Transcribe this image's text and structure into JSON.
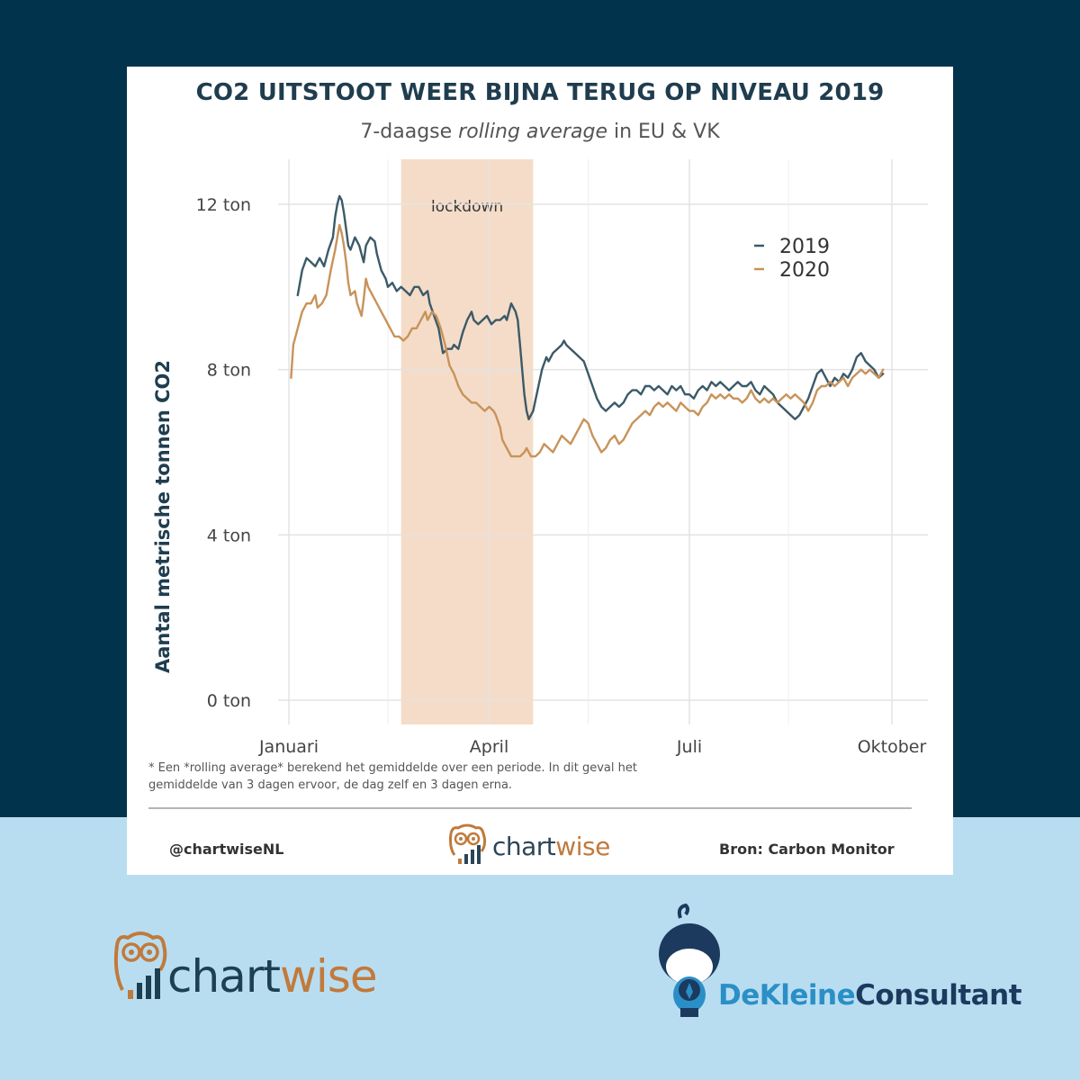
{
  "header": {
    "title": "CO2 UITSTOOT WEER BIJNA TERUG OP NIVEAU 2019",
    "subtitle_pre": "7-daagse ",
    "subtitle_em": "rolling average",
    "subtitle_post": " in EU & VK"
  },
  "footer": {
    "footnote_line1": "* Een *rolling average* berekend het gemiddelde over een periode. In dit geval het",
    "footnote_line2": "gemiddelde van 3 dagen ervoor, de dag zelf en 3 dagen erna.",
    "handle": "@chartwiseNL",
    "source": "Bron: Carbon Monitor"
  },
  "logos": {
    "chartwise_part1": "chart",
    "chartwise_part2": "wise",
    "consultant_part1": "DeKleine",
    "consultant_part2": "Consultant"
  },
  "colors": {
    "background_top": "#02334d",
    "background_bottom": "#b9ddf0",
    "series_2019": "#3c5a68",
    "series_2020": "#c8935a",
    "lockdown_band": "#f4dcc8",
    "accent_orange": "#c07a3c"
  },
  "chart_data": {
    "type": "line",
    "title": "CO2 UITSTOOT WEER BIJNA TERUG OP NIVEAU 2019",
    "subtitle": "7-daagse rolling average in EU & VK",
    "xlabel": "",
    "ylabel": "Aantal metrische tonnen CO2",
    "x_unit": "day of year",
    "xlim": [
      1,
      275
    ],
    "ylim": [
      0,
      12
    ],
    "x_ticks": [
      {
        "day": 1,
        "label": "Januari"
      },
      {
        "day": 92,
        "label": "April"
      },
      {
        "day": 183,
        "label": "Juli"
      },
      {
        "day": 275,
        "label": "Oktober"
      }
    ],
    "y_ticks": [
      {
        "value": 0,
        "label": "0 ton"
      },
      {
        "value": 4,
        "label": "4 ton"
      },
      {
        "value": 8,
        "label": "8 ton"
      },
      {
        "value": 12,
        "label": "12 ton"
      }
    ],
    "minor_x_gridlines": [
      46,
      137,
      228
    ],
    "annotations": [
      {
        "type": "band",
        "label": "lockdown",
        "from_day": 52,
        "to_day": 112
      }
    ],
    "legend_position": "top-right",
    "grid": true,
    "series": [
      {
        "name": "2019",
        "points": [
          [
            5,
            9.8
          ],
          [
            7,
            10.4
          ],
          [
            9,
            10.7
          ],
          [
            11,
            10.6
          ],
          [
            13,
            10.5
          ],
          [
            15,
            10.7
          ],
          [
            17,
            10.5
          ],
          [
            19,
            10.9
          ],
          [
            21,
            11.2
          ],
          [
            22,
            11.7
          ],
          [
            23,
            12.0
          ],
          [
            24,
            12.2
          ],
          [
            25,
            12.1
          ],
          [
            26,
            11.8
          ],
          [
            27,
            11.4
          ],
          [
            28,
            11.0
          ],
          [
            29,
            10.9
          ],
          [
            31,
            11.2
          ],
          [
            33,
            11.0
          ],
          [
            35,
            10.6
          ],
          [
            36,
            11.0
          ],
          [
            38,
            11.2
          ],
          [
            40,
            11.1
          ],
          [
            41,
            10.8
          ],
          [
            43,
            10.4
          ],
          [
            45,
            10.2
          ],
          [
            46,
            10.0
          ],
          [
            48,
            10.1
          ],
          [
            50,
            9.9
          ],
          [
            52,
            10.0
          ],
          [
            54,
            9.9
          ],
          [
            56,
            9.8
          ],
          [
            58,
            10.0
          ],
          [
            60,
            10.0
          ],
          [
            62,
            9.8
          ],
          [
            64,
            9.9
          ],
          [
            65,
            9.6
          ],
          [
            67,
            9.3
          ],
          [
            69,
            9.0
          ],
          [
            70,
            8.7
          ],
          [
            71,
            8.4
          ],
          [
            73,
            8.5
          ],
          [
            75,
            8.5
          ],
          [
            76,
            8.6
          ],
          [
            78,
            8.5
          ],
          [
            79,
            8.7
          ],
          [
            80,
            8.9
          ],
          [
            82,
            9.2
          ],
          [
            84,
            9.4
          ],
          [
            85,
            9.2
          ],
          [
            87,
            9.1
          ],
          [
            89,
            9.2
          ],
          [
            91,
            9.3
          ],
          [
            93,
            9.1
          ],
          [
            95,
            9.2
          ],
          [
            97,
            9.2
          ],
          [
            99,
            9.3
          ],
          [
            100,
            9.2
          ],
          [
            101,
            9.4
          ],
          [
            102,
            9.6
          ],
          [
            104,
            9.4
          ],
          [
            105,
            9.2
          ],
          [
            106,
            8.6
          ],
          [
            107,
            8.0
          ],
          [
            108,
            7.4
          ],
          [
            109,
            7.0
          ],
          [
            110,
            6.8
          ],
          [
            111,
            6.9
          ],
          [
            112,
            7.0
          ],
          [
            114,
            7.5
          ],
          [
            116,
            8.0
          ],
          [
            118,
            8.3
          ],
          [
            119,
            8.2
          ],
          [
            121,
            8.4
          ],
          [
            123,
            8.5
          ],
          [
            125,
            8.6
          ],
          [
            126,
            8.7
          ],
          [
            127,
            8.6
          ],
          [
            129,
            8.5
          ],
          [
            131,
            8.4
          ],
          [
            133,
            8.3
          ],
          [
            135,
            8.2
          ],
          [
            137,
            7.9
          ],
          [
            139,
            7.6
          ],
          [
            141,
            7.3
          ],
          [
            143,
            7.1
          ],
          [
            145,
            7.0
          ],
          [
            147,
            7.1
          ],
          [
            149,
            7.2
          ],
          [
            151,
            7.1
          ],
          [
            153,
            7.2
          ],
          [
            155,
            7.4
          ],
          [
            157,
            7.5
          ],
          [
            159,
            7.5
          ],
          [
            161,
            7.4
          ],
          [
            163,
            7.6
          ],
          [
            165,
            7.6
          ],
          [
            167,
            7.5
          ],
          [
            169,
            7.6
          ],
          [
            171,
            7.5
          ],
          [
            173,
            7.4
          ],
          [
            175,
            7.6
          ],
          [
            177,
            7.5
          ],
          [
            179,
            7.6
          ],
          [
            181,
            7.4
          ],
          [
            183,
            7.4
          ],
          [
            185,
            7.3
          ],
          [
            187,
            7.5
          ],
          [
            189,
            7.6
          ],
          [
            191,
            7.5
          ],
          [
            193,
            7.7
          ],
          [
            195,
            7.6
          ],
          [
            197,
            7.7
          ],
          [
            199,
            7.6
          ],
          [
            201,
            7.5
          ],
          [
            203,
            7.6
          ],
          [
            205,
            7.7
          ],
          [
            207,
            7.6
          ],
          [
            209,
            7.6
          ],
          [
            211,
            7.7
          ],
          [
            213,
            7.5
          ],
          [
            215,
            7.4
          ],
          [
            217,
            7.6
          ],
          [
            219,
            7.5
          ],
          [
            221,
            7.4
          ],
          [
            223,
            7.2
          ],
          [
            225,
            7.1
          ],
          [
            227,
            7.0
          ],
          [
            229,
            6.9
          ],
          [
            231,
            6.8
          ],
          [
            233,
            6.9
          ],
          [
            235,
            7.1
          ],
          [
            237,
            7.3
          ],
          [
            239,
            7.6
          ],
          [
            241,
            7.9
          ],
          [
            243,
            8.0
          ],
          [
            245,
            7.8
          ],
          [
            247,
            7.6
          ],
          [
            249,
            7.8
          ],
          [
            251,
            7.7
          ],
          [
            253,
            7.9
          ],
          [
            255,
            7.8
          ],
          [
            257,
            8.0
          ],
          [
            259,
            8.3
          ],
          [
            261,
            8.4
          ],
          [
            263,
            8.2
          ],
          [
            265,
            8.1
          ],
          [
            267,
            8.0
          ],
          [
            269,
            7.8
          ],
          [
            271,
            7.9
          ]
        ]
      },
      {
        "name": "2020",
        "points": [
          [
            2,
            7.8
          ],
          [
            3,
            8.6
          ],
          [
            5,
            9.0
          ],
          [
            7,
            9.4
          ],
          [
            9,
            9.6
          ],
          [
            11,
            9.6
          ],
          [
            13,
            9.8
          ],
          [
            14,
            9.5
          ],
          [
            16,
            9.6
          ],
          [
            18,
            9.8
          ],
          [
            20,
            10.4
          ],
          [
            22,
            10.9
          ],
          [
            23,
            11.2
          ],
          [
            24,
            11.5
          ],
          [
            25,
            11.3
          ],
          [
            26,
            11.0
          ],
          [
            27,
            10.6
          ],
          [
            28,
            10.1
          ],
          [
            29,
            9.8
          ],
          [
            31,
            9.9
          ],
          [
            32,
            9.6
          ],
          [
            34,
            9.3
          ],
          [
            35,
            9.7
          ],
          [
            36,
            10.2
          ],
          [
            37,
            10.0
          ],
          [
            39,
            9.8
          ],
          [
            41,
            9.6
          ],
          [
            43,
            9.4
          ],
          [
            45,
            9.2
          ],
          [
            47,
            9.0
          ],
          [
            49,
            8.8
          ],
          [
            51,
            8.8
          ],
          [
            53,
            8.7
          ],
          [
            55,
            8.8
          ],
          [
            57,
            9.0
          ],
          [
            59,
            9.0
          ],
          [
            61,
            9.2
          ],
          [
            63,
            9.4
          ],
          [
            64,
            9.2
          ],
          [
            66,
            9.4
          ],
          [
            68,
            9.3
          ],
          [
            70,
            9.0
          ],
          [
            72,
            8.6
          ],
          [
            74,
            8.1
          ],
          [
            76,
            7.9
          ],
          [
            78,
            7.6
          ],
          [
            80,
            7.4
          ],
          [
            82,
            7.3
          ],
          [
            84,
            7.2
          ],
          [
            86,
            7.2
          ],
          [
            88,
            7.1
          ],
          [
            90,
            7.0
          ],
          [
            92,
            7.1
          ],
          [
            94,
            7.0
          ],
          [
            95,
            6.9
          ],
          [
            97,
            6.6
          ],
          [
            98,
            6.3
          ],
          [
            100,
            6.1
          ],
          [
            102,
            5.9
          ],
          [
            104,
            5.9
          ],
          [
            106,
            5.9
          ],
          [
            108,
            6.0
          ],
          [
            109,
            6.1
          ],
          [
            111,
            5.9
          ],
          [
            113,
            5.9
          ],
          [
            115,
            6.0
          ],
          [
            117,
            6.2
          ],
          [
            119,
            6.1
          ],
          [
            121,
            6.0
          ],
          [
            123,
            6.2
          ],
          [
            125,
            6.4
          ],
          [
            127,
            6.3
          ],
          [
            129,
            6.2
          ],
          [
            131,
            6.4
          ],
          [
            133,
            6.6
          ],
          [
            135,
            6.8
          ],
          [
            137,
            6.7
          ],
          [
            139,
            6.4
          ],
          [
            141,
            6.2
          ],
          [
            143,
            6.0
          ],
          [
            145,
            6.1
          ],
          [
            147,
            6.3
          ],
          [
            149,
            6.4
          ],
          [
            151,
            6.2
          ],
          [
            153,
            6.3
          ],
          [
            155,
            6.5
          ],
          [
            157,
            6.7
          ],
          [
            159,
            6.8
          ],
          [
            161,
            6.9
          ],
          [
            163,
            7.0
          ],
          [
            165,
            6.9
          ],
          [
            167,
            7.1
          ],
          [
            169,
            7.2
          ],
          [
            171,
            7.1
          ],
          [
            173,
            7.2
          ],
          [
            175,
            7.1
          ],
          [
            177,
            7.0
          ],
          [
            179,
            7.2
          ],
          [
            181,
            7.1
          ],
          [
            183,
            7.0
          ],
          [
            185,
            7.0
          ],
          [
            187,
            6.9
          ],
          [
            189,
            7.1
          ],
          [
            191,
            7.2
          ],
          [
            193,
            7.4
          ],
          [
            195,
            7.3
          ],
          [
            197,
            7.4
          ],
          [
            199,
            7.3
          ],
          [
            201,
            7.4
          ],
          [
            203,
            7.3
          ],
          [
            205,
            7.3
          ],
          [
            207,
            7.2
          ],
          [
            209,
            7.3
          ],
          [
            211,
            7.5
          ],
          [
            213,
            7.3
          ],
          [
            215,
            7.2
          ],
          [
            217,
            7.3
          ],
          [
            219,
            7.2
          ],
          [
            221,
            7.3
          ],
          [
            223,
            7.2
          ],
          [
            225,
            7.3
          ],
          [
            227,
            7.4
          ],
          [
            229,
            7.3
          ],
          [
            231,
            7.4
          ],
          [
            233,
            7.3
          ],
          [
            235,
            7.2
          ],
          [
            237,
            7.0
          ],
          [
            239,
            7.2
          ],
          [
            241,
            7.5
          ],
          [
            243,
            7.6
          ],
          [
            245,
            7.6
          ],
          [
            247,
            7.7
          ],
          [
            249,
            7.6
          ],
          [
            251,
            7.7
          ],
          [
            253,
            7.8
          ],
          [
            255,
            7.6
          ],
          [
            257,
            7.8
          ],
          [
            259,
            7.9
          ],
          [
            261,
            8.0
          ],
          [
            263,
            7.9
          ],
          [
            265,
            8.0
          ],
          [
            267,
            7.9
          ],
          [
            269,
            7.8
          ],
          [
            271,
            8.0
          ]
        ]
      }
    ]
  }
}
